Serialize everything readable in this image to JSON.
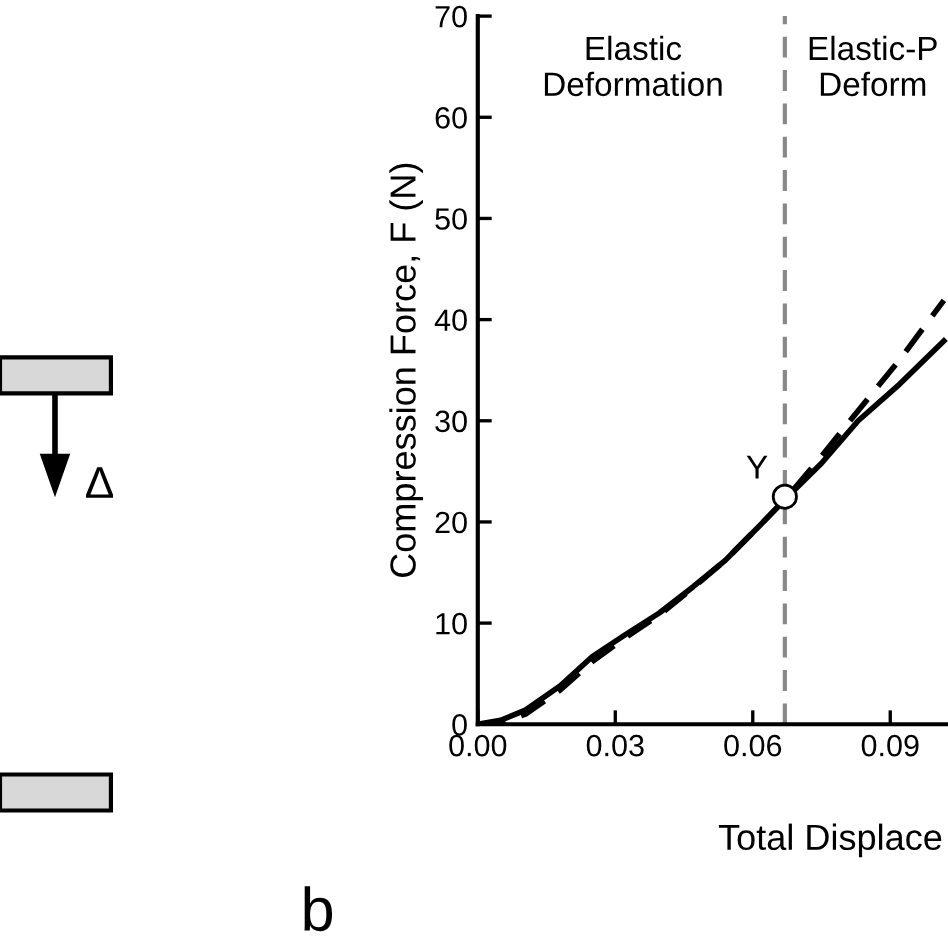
{
  "chart_data": {
    "type": "line",
    "ylabel": "Compression Force, F (N)",
    "xlabel": "Total Displace",
    "xlim": [
      0,
      0.1026
    ],
    "xticks": [
      {
        "value": 0,
        "label": "0.00"
      },
      {
        "value": 0.03,
        "label": "0.03"
      },
      {
        "value": 0.06,
        "label": "0.06"
      },
      {
        "value": 0.09,
        "label": "0.09"
      }
    ],
    "ylim": [
      0,
      70
    ],
    "yticks": [
      0,
      10,
      20,
      30,
      40,
      50,
      60,
      70
    ],
    "grid": false,
    "series": [
      {
        "color": "#000000",
        "line_style": "solid",
        "x": [
          0,
          0.005,
          0.0104,
          0.018,
          0.025,
          0.032,
          0.0396,
          0.047,
          0.054,
          0.061,
          0.0672,
          0.075,
          0.083,
          0.092,
          0.1017
        ],
        "values": [
          0,
          0.4,
          1.4,
          3.8,
          6.7,
          8.8,
          11.0,
          13.6,
          16.2,
          19.4,
          22.3,
          25.8,
          30,
          33.6,
          37.9
        ]
      },
      {
        "color": "#000000",
        "line_style": "dashed",
        "x": [
          0,
          0.005,
          0.0104,
          0.018,
          0.025,
          0.032,
          0.0396,
          0.047,
          0.054,
          0.061,
          0.0672,
          0.075,
          0.083,
          0.092,
          0.1017
        ],
        "values": [
          0,
          0.2,
          1.0,
          3.4,
          6.2,
          8.5,
          10.8,
          13.5,
          16.2,
          19.4,
          22.3,
          26.5,
          31,
          36,
          41.9
        ]
      },
      {
        "type": "scatter",
        "marker": "circle",
        "color": "#000000",
        "x": [
          0.067
        ],
        "values": [
          22.5
        ]
      }
    ],
    "ref_lines": [
      {
        "axis": "x",
        "value": 0.067,
        "color": "#888888",
        "line_style": "dashed"
      }
    ],
    "annotations": [
      {
        "text": "Y",
        "x": 0.067,
        "y": 22.5
      },
      "Elastic\nDeformation",
      "Elastic-P\nDeform",
      "Δ",
      "b"
    ]
  }
}
